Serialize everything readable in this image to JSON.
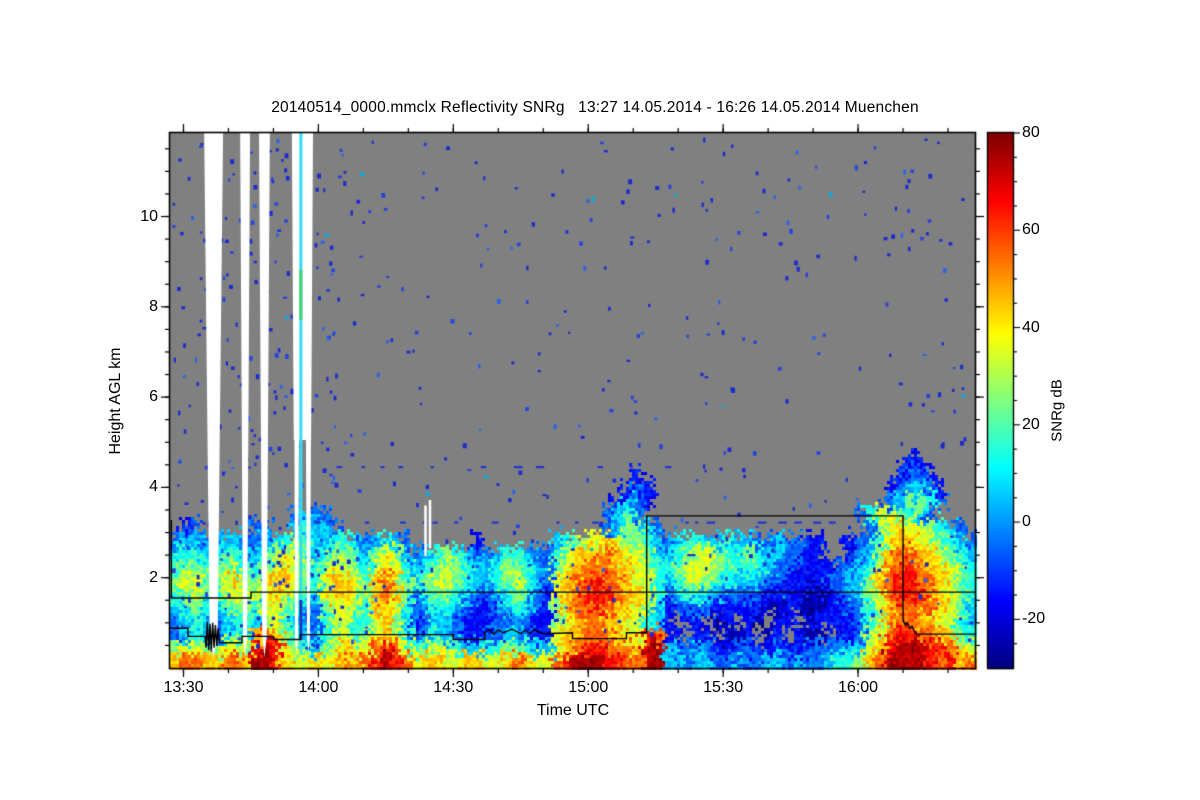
{
  "chart_data": {
    "type": "heatmap",
    "title": "20140514_0000.mmclx Reflectivity SNRg   13:27 14.05.2014 - 16:26 14.05.2014 Muenchen",
    "xlabel": "Time UTC",
    "ylabel": "Height AGL km",
    "colorbar_label": "SNRg dB",
    "x_start": "13:27",
    "x_end": "16:26",
    "x_duration_min": 179,
    "x_ticks": [
      "13:30",
      "14:00",
      "14:30",
      "15:00",
      "15:30",
      "16:00"
    ],
    "x_minor_tick_step_min": 10,
    "y_range_km": [
      0,
      11.85
    ],
    "y_ticks": [
      2,
      4,
      6,
      8,
      10
    ],
    "y_minor_tick_step_km": 0.5,
    "colorbar_range": [
      -30,
      80
    ],
    "colorbar_ticks": [
      80,
      60,
      40,
      20,
      0,
      -20
    ],
    "colorbar_minor_step": 5,
    "colormap": "jet",
    "no_signal_color": "#808080",
    "grid_on": false,
    "legend_position": "right-colorbar",
    "grid_encoding": {
      ".": null,
      "a": -25,
      "b": -15,
      "c": -5,
      "d": 5,
      "e": 15,
      "f": 25,
      "g": 35,
      "h": 45,
      "i": 55,
      "j": 65,
      "k": 75
    },
    "grid_cols": 80,
    "grid_rows": 40,
    "grid_top_km": 11.85,
    "grid_bottom_km": 0,
    "grid": [
      "................................................................................",
      "................................................................................",
      "................................................................................",
      "................................................................................",
      "................................................................................",
      "................................................................................",
      "................................................................................",
      "................................................................................",
      "................................................................................",
      "................................................................................",
      "................................................................................",
      "................................................................................",
      "................................................................................",
      "................................................................................",
      "................................................................................",
      "................................................................................",
      "................................................................................",
      "................................................................................",
      "................................................................................",
      "................................................................................",
      "................................................................................",
      "................................................................................",
      "................................................................................",
      "................................................................................",
      ".........................................................................bb.....",
      "..............................................b.........................bccb....",
      ".............................................bcb.......................bcddcb...",
      "............................................bdcb.......................cdffec...",
      "............cdcc...........................cdec.....................ceggfedc....",
      ".bc.....cc..deddc..........................cdffdc....................cfghggfedc.",
      "cddccddccddefeddeedcdedc......b.......defgghgffedcdeeddeddccdccbb..bcceghhggfedc",
      "deeddeeddefggfdeffedfgfdcdefedccdeedcceghhhihggfddefggfeefeddccbb..bcdfhiihhgfed",
      "effeefgeefghgfefggfeghgedefgfeddeffedcfghiiihhgfeefgggffeeedccbbbbccdegiijihhgfe",
      "fggffghffghhgfeghhgfhihfdfggfeddefgedcghiijiihggedefgfeedddccbbbbccddfhijjiihgfe",
      "efgfefggfghgfedghhgfhihfceffedccdefecbghijjjihhgecdeeddccccbbbbaabccdfgijjjihgfe",
      "defedeffeggfedcfggfehhgecdeedcbbcdedcbfhiijihhgfdbccccbbbbbaabbaabbcceghiiiihgfd",
      "cdedcdeedfgedcceggeeghfdbcddcbbbccdcbbfghiihhggedb.bb.ab.ba.bb.abbbbcefhiihhgged",
      "cdedcdedhihfedcefgefghgecdedcbbccddcbbghhiiihggjibb.bb.aab.ab.baa.bbcfgijjiihhfe",
      "fggffggfjkjgfedfghggijigefgfeddeeffeddghijjiiihkkdccdcbbccbbcbbccccddghjkkkjjihg",
      "hiihhiihkkjhgghghihijkjighhgghhgghihggijkkkjjiikkddcddccdccddcdccdeefhikkkkjijhi"
    ],
    "overlays": {
      "black_line_upper_t_km": [
        [
          0.3,
          3.28
        ],
        [
          0.3,
          1.55
        ],
        [
          18,
          1.55
        ],
        [
          18,
          1.68
        ],
        [
          179,
          1.68
        ]
      ],
      "black_line_lower_t_km": [
        [
          0,
          0.88
        ],
        [
          4,
          0.88
        ],
        [
          4,
          0.7
        ],
        [
          7.8,
          0.7
        ],
        [
          8.0,
          0.45
        ],
        [
          8.3,
          1.02
        ],
        [
          8.6,
          0.4
        ],
        [
          8.9,
          0.98
        ],
        [
          9.2,
          0.42
        ],
        [
          9.5,
          1.0
        ],
        [
          9.8,
          0.45
        ],
        [
          10.1,
          0.95
        ],
        [
          10.4,
          0.5
        ],
        [
          10.7,
          0.88
        ],
        [
          11.0,
          0.56
        ],
        [
          16,
          0.56
        ],
        [
          16,
          0.7
        ],
        [
          23,
          0.7
        ],
        [
          23,
          0.63
        ],
        [
          29,
          0.63
        ],
        [
          29,
          0.74
        ],
        [
          58,
          0.74
        ],
        [
          63,
          0.74
        ],
        [
          63,
          0.63
        ],
        [
          70,
          0.63
        ],
        [
          70,
          0.78
        ],
        [
          71,
          0.85
        ],
        [
          72,
          0.75
        ],
        [
          73,
          0.85
        ],
        [
          74,
          0.78
        ],
        [
          76,
          0.86
        ],
        [
          78,
          0.76
        ],
        [
          79,
          0.84
        ],
        [
          80,
          0.76
        ],
        [
          81,
          0.85
        ],
        [
          83,
          0.76
        ],
        [
          89.5,
          0.78
        ],
        [
          89.5,
          0.65
        ],
        [
          101.5,
          0.65
        ],
        [
          101.5,
          0.78
        ],
        [
          106,
          0.78
        ],
        [
          106,
          3.37
        ],
        [
          163,
          3.37
        ],
        [
          163,
          1.05
        ],
        [
          163.5,
          0.95
        ],
        [
          164,
          1.0
        ],
        [
          164.5,
          0.88
        ],
        [
          165,
          0.92
        ],
        [
          165.5,
          0.82
        ],
        [
          166,
          0.75
        ],
        [
          179,
          0.75
        ]
      ],
      "blue_dashed_lines": [
        {
          "km": 3.22,
          "t0": 29,
          "t1": 153,
          "density": "dense",
          "skip_t": [
            95,
            110
          ]
        },
        {
          "km": 4.45,
          "t0": 37,
          "t1": 119,
          "density": "sparse",
          "skip_t": null
        },
        {
          "km": 2.5,
          "t0": 115,
          "t1": 126,
          "density": "sparse",
          "skip_t": null
        },
        {
          "km": 2.5,
          "t0": 144,
          "t1": 154,
          "density": "sparse",
          "skip_t": null
        }
      ],
      "data_gap_stripes_t": [
        {
          "t0": 7.6,
          "t1": 11.8,
          "split": false
        },
        {
          "t0": 15.6,
          "t1": 17.8,
          "split": false
        },
        {
          "t0": 19.8,
          "t1": 22.2,
          "split": false
        },
        {
          "t0": 27.1,
          "t1": 31.8,
          "split": true
        }
      ],
      "thin_gap_slits": [
        {
          "t": 56.8,
          "km0": 2.48,
          "km1": 3.6
        },
        {
          "t": 57.8,
          "km0": 2.65,
          "km1": 3.72
        }
      ],
      "artifact_line": {
        "t": 29.1,
        "color_main": "#2ee0f5",
        "color_green_seg": "#43cf70",
        "color_navy_seg": "#1a34c0"
      }
    },
    "noise_speckles": {
      "count": 430,
      "left_extra_count": 170,
      "stripe_zone_count": 60,
      "colors": [
        "#1a2bd0",
        "#2743dd",
        "#2c63e6",
        "#00b0e8"
      ],
      "seed": 42
    },
    "line_color": "#000000"
  }
}
